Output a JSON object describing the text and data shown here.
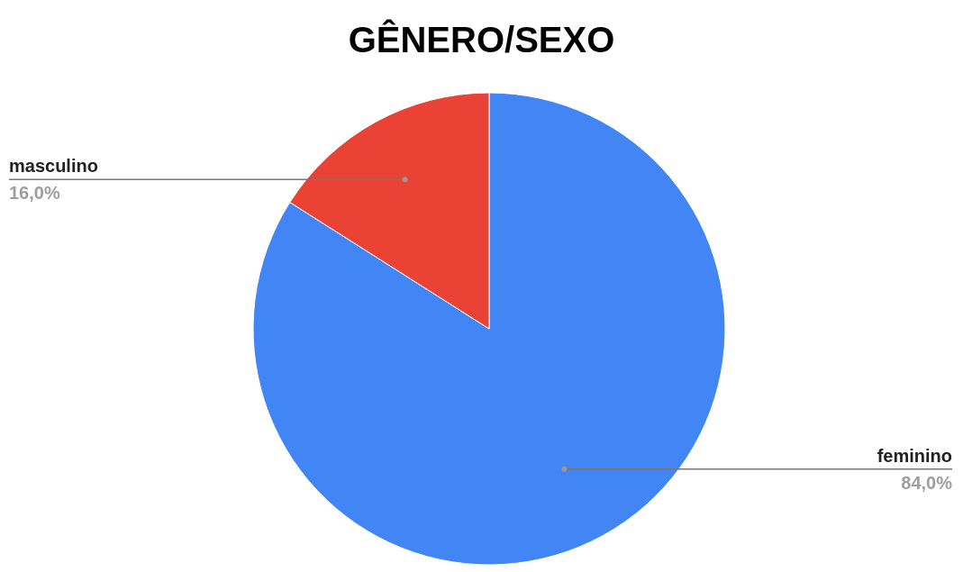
{
  "chart_data": {
    "type": "pie",
    "title": "GÊNERO/SEXO",
    "categories": [
      "feminino",
      "masculino"
    ],
    "values": [
      84,
      16
    ],
    "colors": [
      "#4285f4",
      "#ea4335"
    ],
    "value_labels": [
      "84,0%",
      "16,0%"
    ]
  }
}
